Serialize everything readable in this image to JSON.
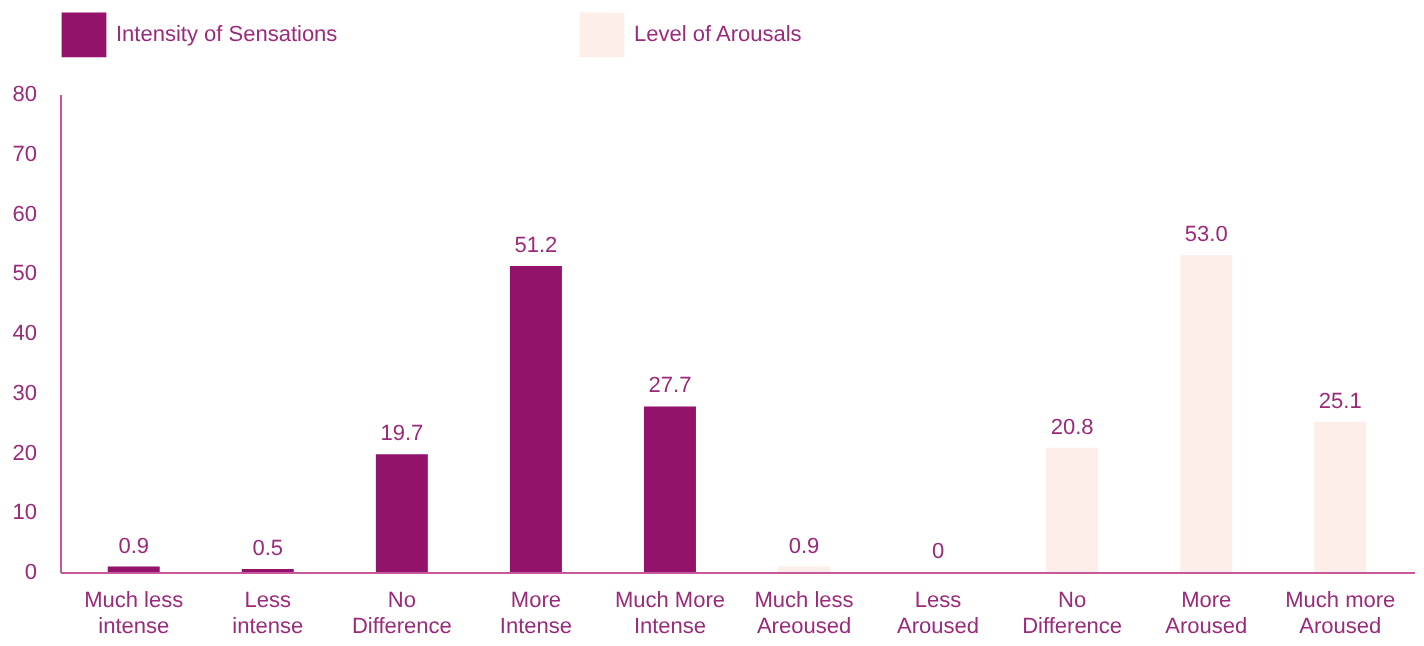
{
  "chart_data": {
    "type": "bar",
    "categories": [
      "Much less\nintense",
      "Less\nintense",
      "No\nDifference",
      "More\nIntense",
      "Much More\nIntense",
      "Much less\nAreoused",
      "Less\nAroused",
      "No\nDifference",
      "More\nAroused",
      "Much more\nAroused"
    ],
    "series": [
      {
        "name": "Intensity of Sensations",
        "color": "#93136b",
        "values": [
          0.9,
          0.5,
          19.7,
          51.2,
          27.7,
          null,
          null,
          null,
          null,
          null
        ],
        "value_labels": [
          "0.9",
          "0.5",
          "19.7",
          "51.2",
          "27.7",
          null,
          null,
          null,
          null,
          null
        ]
      },
      {
        "name": "Level of Arousals",
        "color": "#fdeeea",
        "values": [
          null,
          null,
          null,
          null,
          null,
          0.9,
          0,
          20.8,
          53.0,
          25.1
        ],
        "value_labels": [
          null,
          null,
          null,
          null,
          null,
          "0.9",
          "0",
          "20.8",
          "53.0",
          "25.1"
        ]
      }
    ],
    "ylim": [
      0,
      80
    ],
    "yticks": [
      0,
      10,
      20,
      30,
      40,
      50,
      60,
      70,
      80
    ],
    "grid": false,
    "legend": "top"
  }
}
